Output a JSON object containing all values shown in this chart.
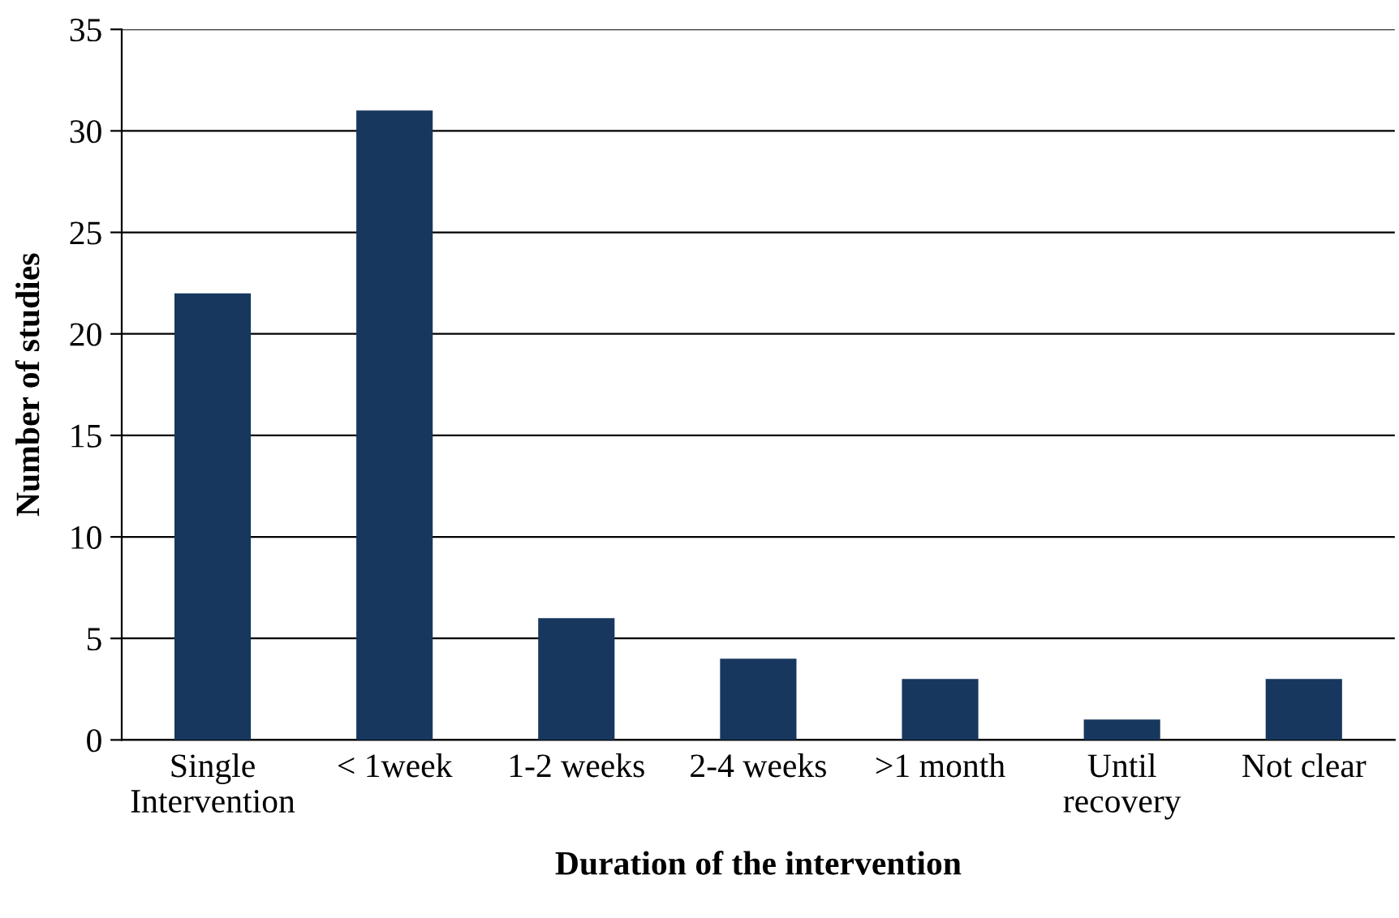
{
  "chart_data": {
    "type": "bar",
    "xlabel": "Duration of the intervention",
    "ylabel": "Number of studies",
    "categories": [
      "Single\nIntervention",
      "< 1week",
      "1-2 weeks",
      "2-4 weeks",
      ">1 month",
      "Until\nrecovery",
      "Not clear"
    ],
    "values": [
      22,
      31,
      6,
      4,
      3,
      1,
      3
    ],
    "color": "#17375e",
    "ylim": [
      0,
      35
    ],
    "yticks": [
      0,
      5,
      10,
      15,
      20,
      25,
      30,
      35
    ],
    "grid": "y",
    "legend": false
  }
}
